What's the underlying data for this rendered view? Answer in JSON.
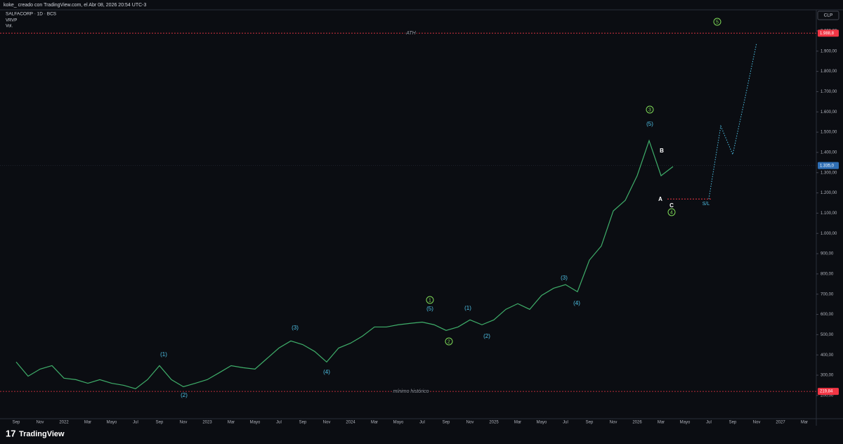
{
  "header": {
    "credit": "koke_ creado con TradingView.com, el Abr 08, 2026 20:54 UTC-3",
    "symbol": "SALFACORP · 1D · BCS",
    "indicators": [
      "VRVP",
      "Vol."
    ],
    "currency": "CLP",
    "brand": "TradingView"
  },
  "chart_data": {
    "type": "line",
    "categories": [
      "Sep",
      null,
      "Nov",
      null,
      "2022",
      null,
      "Mar",
      null,
      "Mayo",
      null,
      "Jul",
      null,
      "Sep",
      null,
      "Nov",
      null,
      "2023",
      null,
      "Mar",
      null,
      "Mayo",
      null,
      "Jul",
      null,
      "Sep",
      null,
      "Nov",
      null,
      "2024",
      null,
      "Mar",
      null,
      "Mayo",
      null,
      "Jul",
      null,
      "Sep",
      null,
      "Nov",
      null,
      "2025",
      null,
      "Mar",
      null,
      "Mayo",
      null,
      "Jul",
      null,
      "Sep",
      null,
      "Nov",
      null,
      "2026",
      null,
      "Mar",
      null,
      "Mayo",
      null,
      "Jul",
      null,
      "Sep",
      null,
      "Nov",
      null,
      "2027",
      null,
      "Mar"
    ],
    "series": [
      {
        "color": "#3fae6a",
        "values": [
          365,
          295,
          330,
          347,
          285,
          278,
          260,
          278,
          260,
          250,
          233,
          278,
          347,
          278,
          243,
          260,
          278,
          312,
          347,
          337,
          330,
          382,
          434,
          469,
          451,
          417,
          365,
          434,
          458,
          493,
          538,
          538,
          549,
          556,
          562,
          549,
          521,
          538,
          573,
          549,
          573,
          625,
          653,
          625,
          694,
          729,
          747,
          712,
          868,
          938,
          1111,
          1163,
          1285,
          1458,
          1285,
          1330,
          null,
          null,
          null,
          null,
          null,
          null,
          null,
          null,
          null,
          null,
          null
        ]
      },
      {
        "color": "#4fc3e8",
        "dashed": true,
        "values": [
          null,
          null,
          null,
          null,
          null,
          null,
          null,
          null,
          null,
          null,
          null,
          null,
          null,
          null,
          null,
          null,
          null,
          null,
          null,
          null,
          null,
          null,
          null,
          null,
          null,
          null,
          null,
          null,
          null,
          null,
          null,
          null,
          null,
          null,
          null,
          null,
          null,
          null,
          null,
          null,
          null,
          null,
          null,
          null,
          null,
          null,
          null,
          null,
          null,
          null,
          null,
          null,
          null,
          null,
          null,
          null,
          null,
          null,
          1170,
          1530,
          1390,
          1660,
          1940,
          null,
          null,
          null,
          null
        ]
      }
    ],
    "ylim": [
      85,
      2104
    ],
    "yticks": [
      {
        "value": 200,
        "label": "200,00"
      },
      {
        "value": 300,
        "label": "300,00"
      },
      {
        "value": 400,
        "label": "400,00"
      },
      {
        "value": 500,
        "label": "500,00"
      },
      {
        "value": 600,
        "label": "600,00"
      },
      {
        "value": 700,
        "label": "700,00"
      },
      {
        "value": 800,
        "label": "800,00"
      },
      {
        "value": 900,
        "label": "900,00"
      },
      {
        "value": 1000,
        "label": "1.000,00"
      },
      {
        "value": 1100,
        "label": "1.100,00"
      },
      {
        "value": 1200,
        "label": "1.200,00"
      },
      {
        "value": 1300,
        "label": "1.300,00"
      },
      {
        "value": 1400,
        "label": "1.400,00"
      },
      {
        "value": 1500,
        "label": "1.500,00"
      },
      {
        "value": 1600,
        "label": "1.600,00"
      },
      {
        "value": 1700,
        "label": "1.700,00"
      },
      {
        "value": 1800,
        "label": "1.800,00"
      },
      {
        "value": 1900,
        "label": "1.900,00"
      },
      {
        "value": 2000,
        "label": "2.000,00"
      }
    ],
    "grid": false,
    "levels": [
      {
        "value": 1988.8,
        "label": "1.988,8",
        "text": "ATH",
        "color": "#f23645"
      },
      {
        "value": 1335,
        "label": "1.335,0",
        "color": "#2f6fb5"
      },
      {
        "value": 219.84,
        "label": "219,84",
        "text": "mínimo histórico",
        "color": "#f23645"
      }
    ],
    "stop_loss": {
      "value": 1170,
      "text": "S/L",
      "color": "#f23645"
    },
    "annotations": [
      "(1)",
      "(2)",
      "(3)",
      "(4)",
      "1",
      "(5)",
      "2",
      "(1)",
      "(2)",
      "(3)",
      "(4)",
      "3",
      "(5)",
      "B",
      "A",
      "C",
      "4",
      "5"
    ]
  }
}
